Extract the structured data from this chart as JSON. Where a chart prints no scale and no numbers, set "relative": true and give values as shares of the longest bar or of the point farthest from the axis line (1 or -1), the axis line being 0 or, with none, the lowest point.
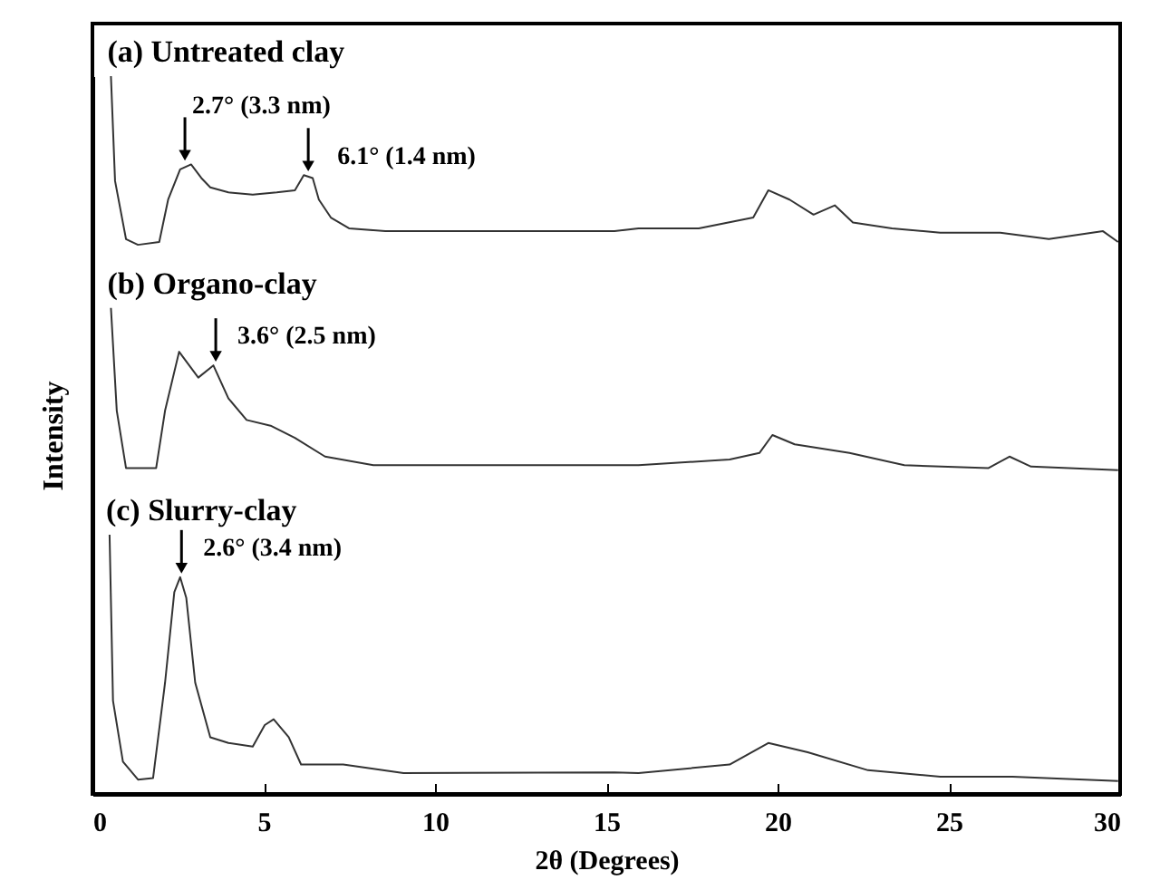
{
  "chart_data": {
    "type": "line",
    "relative": true,
    "xlabel": "2θ (Degrees)",
    "ylabel": "Intensity",
    "xlim": [
      0,
      30
    ],
    "xticks": [
      0,
      5,
      10,
      15,
      20,
      25,
      30
    ],
    "series": [
      {
        "name": "(a) Untreated clay",
        "color": "#333333",
        "x": [
          0.54,
          0.66,
          0.98,
          1.33,
          1.95,
          2.21,
          2.56,
          2.88,
          3.18,
          3.44,
          3.97,
          4.68,
          5.38,
          5.91,
          6.17,
          6.43,
          6.61,
          6.96,
          7.49,
          8.55,
          11.7,
          15.24,
          15.94,
          17.7,
          19.29,
          19.73,
          20.35,
          21.05,
          21.67,
          22.2,
          23.34,
          24.75,
          26.5,
          27.92,
          29.5,
          29.94
        ],
        "values": [
          1.0,
          0.854,
          0.773,
          0.765,
          0.769,
          0.828,
          0.87,
          0.877,
          0.858,
          0.845,
          0.838,
          0.835,
          0.838,
          0.841,
          0.862,
          0.858,
          0.828,
          0.803,
          0.788,
          0.784,
          0.784,
          0.784,
          0.788,
          0.788,
          0.803,
          0.841,
          0.828,
          0.807,
          0.82,
          0.796,
          0.788,
          0.782,
          0.782,
          0.773,
          0.784,
          0.769
        ]
      },
      {
        "name": "(b) Organo-clay",
        "color": "#333333",
        "x": [
          0.54,
          0.71,
          0.98,
          1.86,
          2.12,
          2.53,
          3.09,
          3.53,
          3.97,
          4.5,
          5.2,
          5.91,
          6.79,
          8.2,
          11.7,
          15.24,
          15.94,
          18.6,
          19.47,
          19.85,
          20.5,
          22.1,
          23.7,
          26.16,
          26.77,
          27.4,
          29.94
        ],
        "values": [
          0.677,
          0.534,
          0.454,
          0.454,
          0.534,
          0.616,
          0.58,
          0.597,
          0.551,
          0.521,
          0.513,
          0.496,
          0.47,
          0.458,
          0.458,
          0.458,
          0.458,
          0.466,
          0.475,
          0.5,
          0.487,
          0.475,
          0.458,
          0.454,
          0.47,
          0.456,
          0.451
        ]
      },
      {
        "name": "(c) Slurry-clay",
        "color": "#333333",
        "x": [
          0.5,
          0.6,
          0.89,
          1.33,
          1.77,
          2.12,
          2.39,
          2.56,
          2.74,
          3.0,
          3.44,
          3.97,
          4.68,
          5.03,
          5.29,
          5.73,
          6.09,
          7.32,
          9.08,
          15.24,
          15.94,
          18.6,
          19.73,
          20.88,
          22.64,
          24.75,
          26.86,
          29.94
        ],
        "values": [
          0.361,
          0.13,
          0.045,
          0.02,
          0.022,
          0.155,
          0.281,
          0.302,
          0.273,
          0.155,
          0.079,
          0.071,
          0.066,
          0.096,
          0.104,
          0.079,
          0.041,
          0.041,
          0.029,
          0.03,
          0.029,
          0.041,
          0.071,
          0.058,
          0.033,
          0.024,
          0.024,
          0.018
        ]
      }
    ],
    "annotations": [
      {
        "text": "2.7° (3.3 nm)",
        "x": 2.7,
        "y": 0.877
      },
      {
        "text": "6.1° (1.4 nm)",
        "x": 6.3,
        "y": 0.862
      },
      {
        "text": "3.6° (2.5 nm)",
        "x": 3.6,
        "y": 0.597
      },
      {
        "text": "2.6° (3.4 nm)",
        "x": 2.6,
        "y": 0.302
      }
    ]
  }
}
